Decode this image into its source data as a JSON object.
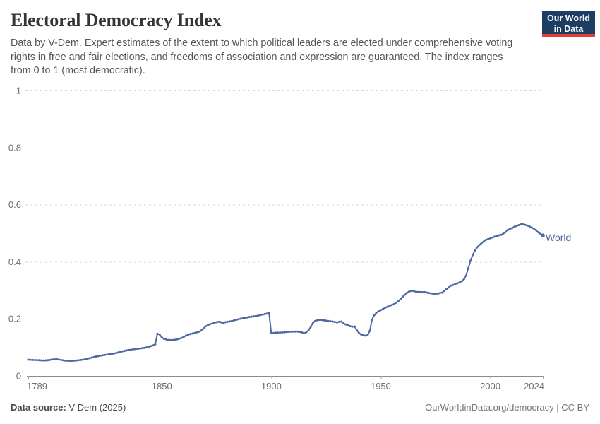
{
  "header": {
    "title": "Electoral Democracy Index",
    "subtitle": "Data by V-Dem. Expert estimates of the extent to which political leaders are elected under comprehensive voting rights in free and fair elections, and freedoms of association and expression are guaranteed. The index ranges from 0 to 1 (most democratic).",
    "logo": {
      "line1": "Our World",
      "line2": "in Data",
      "bg_color": "#1d3d63",
      "accent_color": "#e04038"
    }
  },
  "chart_data": {
    "type": "line",
    "title": "Electoral Democracy Index",
    "xlabel": "",
    "ylabel": "",
    "xlim": [
      1789,
      2024
    ],
    "ylim": [
      0,
      1
    ],
    "x_ticks": [
      1789,
      1850,
      1900,
      1950,
      2000,
      2024
    ],
    "y_ticks": [
      0,
      0.2,
      0.4,
      0.6,
      0.8,
      1
    ],
    "y_tick_labels": [
      "0",
      "0.2",
      "0.4",
      "0.6",
      "0.8",
      "1"
    ],
    "grid": "horizontal-dashed",
    "legend_position": "end-of-line-label",
    "colors": {
      "grid": "#d9d9d9",
      "axis": "#8c8c8c",
      "tick": "#a8a8a8",
      "tick_text": "#6e6e6e"
    },
    "series": [
      {
        "name": "World",
        "color": "#4c69a1",
        "points": [
          [
            1789,
            0.057
          ],
          [
            1791,
            0.056
          ],
          [
            1793,
            0.0555
          ],
          [
            1796,
            0.054
          ],
          [
            1798,
            0.055
          ],
          [
            1800,
            0.058
          ],
          [
            1802,
            0.059
          ],
          [
            1804,
            0.056
          ],
          [
            1806,
            0.0535
          ],
          [
            1808,
            0.053
          ],
          [
            1810,
            0.0535
          ],
          [
            1812,
            0.055
          ],
          [
            1814,
            0.057
          ],
          [
            1816,
            0.06
          ],
          [
            1818,
            0.064
          ],
          [
            1820,
            0.068
          ],
          [
            1822,
            0.071
          ],
          [
            1824,
            0.0735
          ],
          [
            1826,
            0.076
          ],
          [
            1828,
            0.078
          ],
          [
            1830,
            0.082
          ],
          [
            1832,
            0.086
          ],
          [
            1834,
            0.0895
          ],
          [
            1836,
            0.092
          ],
          [
            1838,
            0.094
          ],
          [
            1840,
            0.096
          ],
          [
            1842,
            0.098
          ],
          [
            1844,
            0.102
          ],
          [
            1846,
            0.107
          ],
          [
            1847,
            0.111
          ],
          [
            1848,
            0.148
          ],
          [
            1849,
            0.145
          ],
          [
            1850,
            0.135
          ],
          [
            1851,
            0.13
          ],
          [
            1853,
            0.126
          ],
          [
            1855,
            0.1255
          ],
          [
            1857,
            0.128
          ],
          [
            1859,
            0.133
          ],
          [
            1861,
            0.141
          ],
          [
            1863,
            0.1465
          ],
          [
            1865,
            0.1505
          ],
          [
            1867,
            0.155
          ],
          [
            1868,
            0.159
          ],
          [
            1869,
            0.166
          ],
          [
            1870,
            0.174
          ],
          [
            1872,
            0.181
          ],
          [
            1874,
            0.1865
          ],
          [
            1876,
            0.1895
          ],
          [
            1878,
            0.1865
          ],
          [
            1880,
            0.1895
          ],
          [
            1882,
            0.1925
          ],
          [
            1884,
            0.1965
          ],
          [
            1886,
            0.2005
          ],
          [
            1888,
            0.2035
          ],
          [
            1890,
            0.2065
          ],
          [
            1892,
            0.209
          ],
          [
            1894,
            0.2115
          ],
          [
            1896,
            0.2145
          ],
          [
            1898,
            0.2185
          ],
          [
            1899,
            0.2205
          ],
          [
            1900,
            0.1495
          ],
          [
            1902,
            0.1515
          ],
          [
            1904,
            0.152
          ],
          [
            1906,
            0.153
          ],
          [
            1908,
            0.1545
          ],
          [
            1910,
            0.1555
          ],
          [
            1912,
            0.1555
          ],
          [
            1914,
            0.1525
          ],
          [
            1915,
            0.1495
          ],
          [
            1916,
            0.1535
          ],
          [
            1917,
            0.16
          ],
          [
            1918,
            0.172
          ],
          [
            1919,
            0.186
          ],
          [
            1920,
            0.1925
          ],
          [
            1921,
            0.195
          ],
          [
            1922,
            0.1965
          ],
          [
            1923,
            0.196
          ],
          [
            1924,
            0.1945
          ],
          [
            1925,
            0.1935
          ],
          [
            1926,
            0.1925
          ],
          [
            1928,
            0.1905
          ],
          [
            1930,
            0.1875
          ],
          [
            1931,
            0.1895
          ],
          [
            1932,
            0.1905
          ],
          [
            1933,
            0.1845
          ],
          [
            1934,
            0.1805
          ],
          [
            1935,
            0.1775
          ],
          [
            1936,
            0.1745
          ],
          [
            1937,
            0.1725
          ],
          [
            1938,
            0.1735
          ],
          [
            1939,
            0.161
          ],
          [
            1940,
            0.1505
          ],
          [
            1941,
            0.1455
          ],
          [
            1942,
            0.1425
          ],
          [
            1943,
            0.141
          ],
          [
            1944,
            0.1425
          ],
          [
            1945,
            0.158
          ],
          [
            1946,
            0.197
          ],
          [
            1947,
            0.2125
          ],
          [
            1948,
            0.2215
          ],
          [
            1949,
            0.2265
          ],
          [
            1950,
            0.2305
          ],
          [
            1952,
            0.2385
          ],
          [
            1954,
            0.245
          ],
          [
            1956,
            0.2515
          ],
          [
            1958,
            0.262
          ],
          [
            1960,
            0.278
          ],
          [
            1962,
            0.2915
          ],
          [
            1963,
            0.296
          ],
          [
            1964,
            0.2975
          ],
          [
            1965,
            0.2975
          ],
          [
            1966,
            0.295
          ],
          [
            1968,
            0.2935
          ],
          [
            1970,
            0.2935
          ],
          [
            1972,
            0.2905
          ],
          [
            1974,
            0.2875
          ],
          [
            1976,
            0.288
          ],
          [
            1978,
            0.292
          ],
          [
            1980,
            0.304
          ],
          [
            1982,
            0.316
          ],
          [
            1984,
            0.3215
          ],
          [
            1986,
            0.328
          ],
          [
            1987,
            0.3315
          ],
          [
            1988,
            0.339
          ],
          [
            1989,
            0.352
          ],
          [
            1990,
            0.378
          ],
          [
            1991,
            0.404
          ],
          [
            1992,
            0.424
          ],
          [
            1993,
            0.4395
          ],
          [
            1994,
            0.4505
          ],
          [
            1995,
            0.4585
          ],
          [
            1996,
            0.465
          ],
          [
            1997,
            0.4705
          ],
          [
            1998,
            0.4765
          ],
          [
            1999,
            0.4795
          ],
          [
            2000,
            0.482
          ],
          [
            2001,
            0.4845
          ],
          [
            2002,
            0.488
          ],
          [
            2003,
            0.49
          ],
          [
            2004,
            0.4925
          ],
          [
            2005,
            0.4945
          ],
          [
            2006,
            0.499
          ],
          [
            2007,
            0.5045
          ],
          [
            2008,
            0.512
          ],
          [
            2009,
            0.515
          ],
          [
            2010,
            0.518
          ],
          [
            2011,
            0.5225
          ],
          [
            2012,
            0.525
          ],
          [
            2013,
            0.5285
          ],
          [
            2014,
            0.531
          ],
          [
            2015,
            0.5315
          ],
          [
            2016,
            0.529
          ],
          [
            2017,
            0.5265
          ],
          [
            2018,
            0.523
          ],
          [
            2019,
            0.5195
          ],
          [
            2020,
            0.515
          ],
          [
            2021,
            0.51
          ],
          [
            2022,
            0.503
          ],
          [
            2023,
            0.497
          ],
          [
            2024,
            0.492
          ]
        ]
      }
    ]
  },
  "footer": {
    "source_label": "Data source:",
    "source_value": "V-Dem (2025)",
    "right_text": "OurWorldinData.org/democracy | CC BY"
  }
}
